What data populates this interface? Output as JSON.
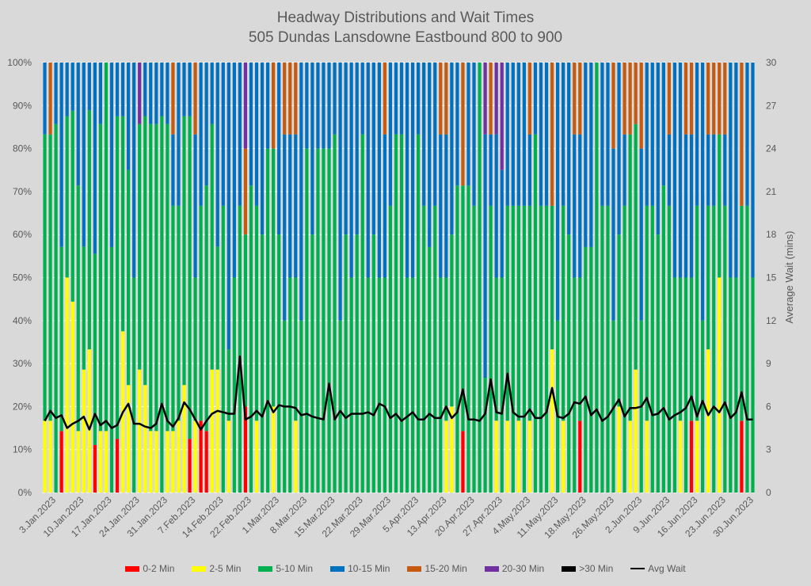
{
  "chart_data": {
    "type": "bar",
    "stacked": true,
    "normalized": true,
    "title": "Headway Distributions and Wait Times",
    "subtitle": "505 Dundas  Lansdowne Eastbound 800 to 900",
    "xlabel": "",
    "ylabel": "",
    "y2label": "Average Wait (mins)",
    "ylim": [
      0,
      1
    ],
    "y2lim": [
      0,
      30
    ],
    "yticks": [
      "0%",
      "10%",
      "20%",
      "30%",
      "40%",
      "50%",
      "60%",
      "70%",
      "80%",
      "90%",
      "100%"
    ],
    "y2ticks": [
      "0",
      "3",
      "6",
      "9",
      "12",
      "15",
      "18",
      "21",
      "24",
      "27",
      "30"
    ],
    "grid": true,
    "legend_position": "bottom",
    "xtick_labels": [
      "3.Jan.2023",
      "10.Jan.2023",
      "17.Jan.2023",
      "24.Jan.2023",
      "31.Jan.2023",
      "7.Feb.2023",
      "14.Feb.2023",
      "22.Feb.2023",
      "1.Mar.2023",
      "8.Mar.2023",
      "15.Mar.2023",
      "22.Mar.2023",
      "29.Mar.2023",
      "5.Apr.2023",
      "13.Apr.2023",
      "20.Apr.2023",
      "27.Apr.2023",
      "4.May.2023",
      "11.May.2023",
      "18.May.2023",
      "26.May.2023",
      "2.Jun.2023",
      "9.Jun.2023",
      "16.Jun.2023",
      "23.Jun.2023",
      "30.Jun.2023"
    ],
    "series_names": [
      "0-2 Min",
      "2-5 Min",
      "5-10 Min",
      "10-15 Min",
      "15-20 Min",
      "20-30 Min",
      ">30 Min"
    ],
    "line_name": "Avg Wait",
    "colors": {
      "0-2 Min": "#ff0000",
      "2-5 Min": "#ffff00",
      "5-10 Min": "#00b050",
      "10-15 Min": "#0070c0",
      "15-20 Min": "#c55a11",
      "20-30 Min": "#7030a0",
      ">30 Min": "#000000",
      "Avg Wait": "#000000"
    },
    "bars": [
      [
        0,
        16.7,
        66.6,
        16.7,
        0,
        0,
        0,
        5.0
      ],
      [
        0,
        16.7,
        66.6,
        0,
        16.7,
        0,
        0,
        5.7
      ],
      [
        0,
        0,
        85.7,
        14.3,
        0,
        0,
        0,
        5.2
      ],
      [
        14.3,
        0,
        42.9,
        42.9,
        0,
        0,
        0,
        5.4
      ],
      [
        0,
        50,
        37.5,
        12.5,
        0,
        0,
        0,
        4.5
      ],
      [
        0,
        44.4,
        44.4,
        11.2,
        0,
        0,
        0,
        4.8
      ],
      [
        0,
        14.3,
        57.1,
        28.6,
        0,
        0,
        0,
        5.0
      ],
      [
        0,
        28.6,
        28.6,
        42.8,
        0,
        0,
        0,
        5.3
      ],
      [
        0,
        33.3,
        55.6,
        11.1,
        0,
        0,
        0,
        4.4
      ],
      [
        11.1,
        0,
        44.4,
        44.5,
        0,
        0,
        0,
        5.5
      ],
      [
        0,
        14.3,
        71.4,
        14.3,
        0,
        0,
        0,
        4.7
      ],
      [
        0,
        14.3,
        85.7,
        0,
        0,
        0,
        0,
        5.0
      ],
      [
        0,
        0,
        57.1,
        42.9,
        0,
        0,
        0,
        4.5
      ],
      [
        12.5,
        0,
        75,
        12.5,
        0,
        0,
        0,
        4.7
      ],
      [
        0,
        37.5,
        50,
        12.5,
        0,
        0,
        0,
        5.6
      ],
      [
        0,
        25,
        50,
        25,
        0,
        0,
        0,
        6.2
      ],
      [
        0,
        0,
        50,
        50,
        0,
        0,
        0,
        4.8
      ],
      [
        0,
        28.6,
        57.1,
        0,
        0,
        14.3,
        0,
        4.8
      ],
      [
        0,
        25,
        62.5,
        12.5,
        0,
        0,
        0,
        4.6
      ],
      [
        0,
        14.3,
        71.4,
        14.3,
        0,
        0,
        0,
        4.5
      ],
      [
        0,
        14.3,
        71.4,
        14.3,
        0,
        0,
        0,
        4.8
      ],
      [
        0,
        0,
        87.5,
        12.5,
        0,
        0,
        0,
        6.2
      ],
      [
        0,
        14.3,
        71.4,
        14.3,
        0,
        0,
        0,
        5.0
      ],
      [
        0,
        14.3,
        52.4,
        16.6,
        16.7,
        0,
        0,
        4.6
      ],
      [
        0,
        16.7,
        50,
        33.3,
        0,
        0,
        0,
        5.2
      ],
      [
        0,
        25,
        62.5,
        12.5,
        0,
        0,
        0,
        6.3
      ],
      [
        12.5,
        0,
        75,
        12.5,
        0,
        0,
        0,
        5.8
      ],
      [
        0,
        16.7,
        33.3,
        33.3,
        16.7,
        0,
        0,
        5.1
      ],
      [
        16.7,
        0,
        50,
        33.3,
        0,
        0,
        0,
        4.4
      ],
      [
        14.3,
        0,
        57.1,
        28.6,
        0,
        0,
        0,
        5.0
      ],
      [
        0,
        28.6,
        57.1,
        14.3,
        0,
        0,
        0,
        5.5
      ],
      [
        0,
        28.6,
        28.6,
        42.8,
        0,
        0,
        0,
        5.7
      ],
      [
        0,
        0,
        66.7,
        33.3,
        0,
        0,
        0,
        5.6
      ],
      [
        0,
        16.7,
        16.6,
        66.7,
        0,
        0,
        0,
        5.5
      ],
      [
        0,
        0,
        50,
        50,
        0,
        0,
        0,
        5.5
      ],
      [
        0,
        0,
        66.7,
        33.3,
        0,
        0,
        0,
        9.5
      ],
      [
        20,
        0,
        40,
        0,
        20,
        20,
        0,
        5.1
      ],
      [
        0,
        0,
        71.4,
        28.6,
        0,
        0,
        0,
        5.3
      ],
      [
        0,
        16.7,
        50,
        33.3,
        0,
        0,
        0,
        5.7
      ],
      [
        0,
        0,
        60,
        40,
        0,
        0,
        0,
        5.3
      ],
      [
        0,
        0,
        80,
        20,
        0,
        0,
        0,
        6.4
      ],
      [
        0,
        20,
        60,
        0,
        20,
        0,
        0,
        5.6
      ],
      [
        0,
        0,
        60,
        40,
        0,
        0,
        0,
        6.1
      ],
      [
        0,
        0,
        40,
        43.3,
        16.7,
        0,
        0,
        6.0
      ],
      [
        0,
        0,
        50,
        33.3,
        16.7,
        0,
        0,
        6.0
      ],
      [
        0,
        16.7,
        33.3,
        33.3,
        16.7,
        0,
        0,
        5.9
      ],
      [
        0,
        0,
        40,
        60,
        0,
        0,
        0,
        5.4
      ],
      [
        0,
        0,
        80,
        20,
        0,
        0,
        0,
        5.5
      ],
      [
        0,
        0,
        60,
        40,
        0,
        0,
        0,
        5.3
      ],
      [
        0,
        0,
        80,
        20,
        0,
        0,
        0,
        5.2
      ],
      [
        0,
        0,
        80,
        20,
        0,
        0,
        0,
        5.1
      ],
      [
        0,
        0,
        80,
        20,
        0,
        0,
        0,
        7.6
      ],
      [
        0,
        0,
        83.3,
        16.7,
        0,
        0,
        0,
        5.1
      ],
      [
        0,
        0,
        40,
        60,
        0,
        0,
        0,
        5.7
      ],
      [
        0,
        0,
        60,
        40,
        0,
        0,
        0,
        5.2
      ],
      [
        0,
        0,
        50,
        50,
        0,
        0,
        0,
        5.5
      ],
      [
        0,
        0,
        60,
        40,
        0,
        0,
        0,
        5.5
      ],
      [
        0,
        0,
        83.3,
        16.7,
        0,
        0,
        0,
        5.5
      ],
      [
        0,
        0,
        50,
        50,
        0,
        0,
        0,
        5.6
      ],
      [
        0,
        0,
        60,
        40,
        0,
        0,
        0,
        5.4
      ],
      [
        0,
        0,
        50,
        50,
        0,
        0,
        0,
        6.2
      ],
      [
        0,
        0,
        50,
        33.3,
        16.7,
        0,
        0,
        6.0
      ],
      [
        0,
        0,
        66.7,
        33.3,
        0,
        0,
        0,
        5.2
      ],
      [
        0,
        0,
        83.3,
        16.7,
        0,
        0,
        0,
        5.5
      ],
      [
        0,
        0,
        83.3,
        16.7,
        0,
        0,
        0,
        5.0
      ],
      [
        0,
        0,
        50,
        50,
        0,
        0,
        0,
        5.3
      ],
      [
        0,
        0,
        50,
        50,
        0,
        0,
        0,
        5.6
      ],
      [
        0,
        0,
        83.3,
        16.7,
        0,
        0,
        0,
        5.1
      ],
      [
        0,
        0,
        66.7,
        33.3,
        0,
        0,
        0,
        5.1
      ],
      [
        0,
        0,
        57.1,
        42.9,
        0,
        0,
        0,
        5.5
      ],
      [
        0,
        0,
        66.7,
        33.3,
        0,
        0,
        0,
        5.2
      ],
      [
        0,
        0,
        50,
        33.3,
        16.7,
        0,
        0,
        5.2
      ],
      [
        0,
        16.7,
        33.3,
        33.3,
        16.7,
        0,
        0,
        6.0
      ],
      [
        0,
        20,
        40,
        40,
        0,
        0,
        0,
        5.2
      ],
      [
        0,
        0,
        71.4,
        28.6,
        0,
        0,
        0,
        5.6
      ],
      [
        14.3,
        0,
        57.1,
        0,
        28.6,
        0,
        0,
        7.2
      ],
      [
        0,
        0,
        71.4,
        28.6,
        0,
        0,
        0,
        5.1
      ],
      [
        0,
        0,
        66.7,
        33.3,
        0,
        0,
        0,
        5.1
      ],
      [
        0,
        0,
        100,
        0,
        0,
        0,
        0,
        5.0
      ],
      [
        0,
        0,
        26.7,
        56.6,
        0,
        16.7,
        0,
        5.5
      ],
      [
        0,
        0,
        66.7,
        16.6,
        16.7,
        0,
        0,
        7.9
      ],
      [
        0,
        16.7,
        33.3,
        33.3,
        0,
        16.7,
        0,
        5.6
      ],
      [
        0,
        0,
        50,
        25,
        0,
        25,
        0,
        5.5
      ],
      [
        0,
        16.7,
        50,
        33.3,
        0,
        0,
        0,
        8.3
      ],
      [
        0,
        0,
        66.7,
        33.3,
        0,
        0,
        0,
        5.6
      ],
      [
        0,
        16.7,
        50,
        33.3,
        0,
        0,
        0,
        5.3
      ],
      [
        0,
        0,
        66.7,
        33.3,
        0,
        0,
        0,
        5.3
      ],
      [
        0,
        16.7,
        50,
        16.6,
        16.7,
        0,
        0,
        5.8
      ],
      [
        0,
        0,
        83.3,
        16.7,
        0,
        0,
        0,
        5.2
      ],
      [
        0,
        0,
        66.7,
        33.3,
        0,
        0,
        0,
        5.2
      ],
      [
        0,
        0,
        66.7,
        33.3,
        0,
        0,
        0,
        5.6
      ],
      [
        0,
        33.3,
        33.4,
        0,
        33.3,
        0,
        0,
        7.3
      ],
      [
        0,
        0,
        40,
        60,
        0,
        0,
        0,
        5.3
      ],
      [
        0,
        16.7,
        50,
        33.3,
        0,
        0,
        0,
        5.2
      ],
      [
        0,
        0,
        60,
        40,
        0,
        0,
        0,
        5.5
      ],
      [
        0,
        0,
        50,
        33.3,
        16.7,
        0,
        0,
        6.3
      ],
      [
        16.7,
        0,
        33.3,
        33.3,
        16.7,
        0,
        0,
        6.2
      ],
      [
        0,
        0,
        57.1,
        42.9,
        0,
        0,
        0,
        6.7
      ],
      [
        0,
        0,
        57.1,
        42.9,
        0,
        0,
        0,
        5.4
      ],
      [
        0,
        0,
        100,
        0,
        0,
        0,
        0,
        5.8
      ],
      [
        0,
        0,
        66.7,
        33.3,
        0,
        0,
        0,
        5.0
      ],
      [
        0,
        0,
        66.7,
        33.3,
        0,
        0,
        0,
        5.3
      ],
      [
        0,
        0,
        40,
        40,
        20,
        0,
        0,
        5.9
      ],
      [
        0,
        20,
        40,
        40,
        0,
        0,
        0,
        6.5
      ],
      [
        0,
        0,
        66.7,
        16.6,
        16.7,
        0,
        0,
        5.3
      ],
      [
        0,
        16.7,
        66.6,
        0,
        16.7,
        0,
        0,
        5.9
      ],
      [
        0,
        28.6,
        57.1,
        0,
        14.3,
        0,
        0,
        5.9
      ],
      [
        0,
        0,
        40,
        40,
        20,
        0,
        0,
        6.0
      ],
      [
        0,
        16.7,
        50,
        33.3,
        0,
        0,
        0,
        6.6
      ],
      [
        0,
        0,
        66.7,
        33.3,
        0,
        0,
        0,
        5.4
      ],
      [
        0,
        0,
        60,
        40,
        0,
        0,
        0,
        5.5
      ],
      [
        0,
        0,
        71.4,
        28.6,
        0,
        0,
        0,
        5.9
      ],
      [
        0,
        0,
        66.7,
        16.6,
        16.7,
        0,
        0,
        5.1
      ],
      [
        0,
        0,
        50,
        50,
        0,
        0,
        0,
        5.4
      ],
      [
        0,
        16.7,
        33.3,
        50,
        0,
        0,
        0,
        5.6
      ],
      [
        0,
        0,
        50,
        33.3,
        16.7,
        0,
        0,
        5.9
      ],
      [
        16.7,
        0,
        33.3,
        33.3,
        16.7,
        0,
        0,
        6.7
      ],
      [
        0,
        16.7,
        50,
        33.3,
        0,
        0,
        0,
        5.3
      ],
      [
        0,
        0,
        40,
        60,
        0,
        0,
        0,
        6.4
      ],
      [
        0,
        33.3,
        33.4,
        16.6,
        16.7,
        0,
        0,
        5.4
      ],
      [
        0,
        0,
        66.7,
        16.6,
        16.7,
        0,
        0,
        6.0
      ],
      [
        0,
        50,
        33.3,
        0,
        16.7,
        0,
        0,
        5.6
      ],
      [
        0,
        0,
        66.7,
        16.6,
        16.7,
        0,
        0,
        6.3
      ],
      [
        0,
        0,
        50,
        50,
        0,
        0,
        0,
        5.2
      ],
      [
        0,
        0,
        50,
        50,
        0,
        0,
        0,
        5.6
      ],
      [
        16.7,
        0,
        50,
        0,
        33.3,
        0,
        0,
        7.0
      ],
      [
        0,
        0,
        66.7,
        33.3,
        0,
        0,
        0,
        5.1
      ],
      [
        0,
        0,
        50,
        50,
        0,
        0,
        0,
        5.1
      ]
    ]
  }
}
